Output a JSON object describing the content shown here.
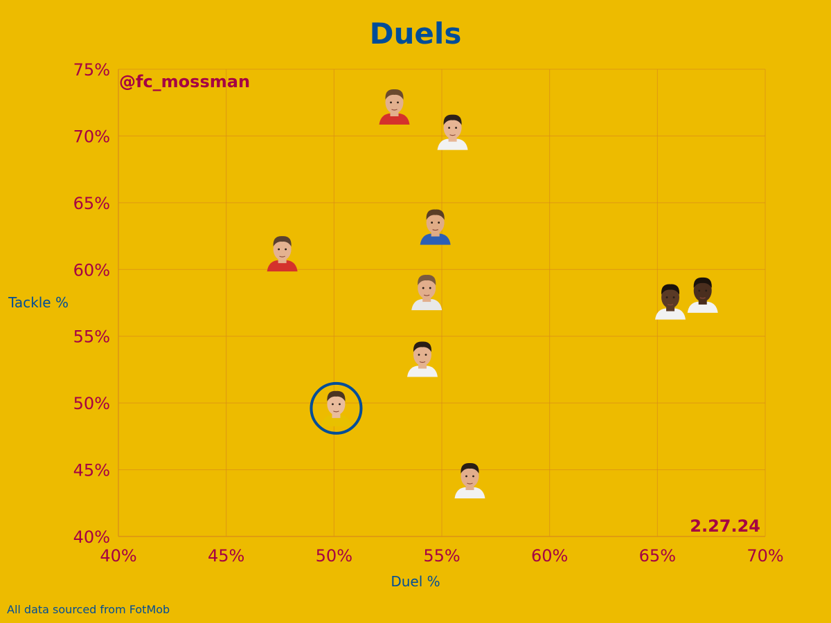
{
  "chart_data": {
    "type": "scatter",
    "title": "Duels",
    "xlabel": "Duel %",
    "ylabel": "Tackle %",
    "xlim": [
      40,
      70
    ],
    "ylim": [
      40,
      75
    ],
    "xticks": [
      40,
      45,
      50,
      55,
      60,
      65,
      70
    ],
    "yticks": [
      40,
      45,
      50,
      55,
      60,
      65,
      70,
      75
    ],
    "x_tick_labels": [
      "40%",
      "45%",
      "50%",
      "55%",
      "60%",
      "65%",
      "70%"
    ],
    "y_tick_labels": [
      "40%",
      "45%",
      "50%",
      "55%",
      "60%",
      "65%",
      "70%",
      "75%"
    ],
    "grid": true,
    "points": [
      {
        "x": 52.8,
        "y": 72.2,
        "kit": "#D4322C",
        "skin": "#E2B08E",
        "hair": "#6B4A2E",
        "highlight": false
      },
      {
        "x": 55.5,
        "y": 70.3,
        "kit": "#F2F2F2",
        "skin": "#E7B594",
        "hair": "#2E211A",
        "highlight": false
      },
      {
        "x": 54.7,
        "y": 63.2,
        "kit": "#2D5FB5",
        "skin": "#E0AC86",
        "hair": "#5A3E26",
        "highlight": false
      },
      {
        "x": 47.6,
        "y": 61.2,
        "kit": "#D4322C",
        "skin": "#E4B290",
        "hair": "#5A4030",
        "highlight": false
      },
      {
        "x": 54.3,
        "y": 58.3,
        "kit": "#E8E8E8",
        "skin": "#E2AE8C",
        "hair": "#7A5A40",
        "highlight": false
      },
      {
        "x": 65.6,
        "y": 57.6,
        "kit": "#F2F2F2",
        "skin": "#5A3A26",
        "hair": "#1A120C",
        "highlight": false
      },
      {
        "x": 67.1,
        "y": 58.1,
        "kit": "#F2F2F2",
        "skin": "#4A2E1E",
        "hair": "#1A120C",
        "highlight": false
      },
      {
        "x": 54.1,
        "y": 53.3,
        "kit": "#F2F2F2",
        "skin": "#E4B290",
        "hair": "#2A1E16",
        "highlight": false
      },
      {
        "x": 50.1,
        "y": 49.6,
        "kit": "#E8C000",
        "skin": "#E9BC9C",
        "hair": "#4A3422",
        "highlight": true
      },
      {
        "x": 56.3,
        "y": 44.2,
        "kit": "#F2F2F2",
        "skin": "#E2AE8C",
        "hair": "#2A1E16",
        "highlight": false
      }
    ],
    "handle": "@fc_mossman",
    "date": "2.27.24",
    "source": "All data sourced from FotMob"
  },
  "colors": {
    "background": "#EDBB00",
    "title": "#004D98",
    "tick": "#A50044",
    "grid": "#D98A1A",
    "highlight_ring": "#004D98"
  }
}
